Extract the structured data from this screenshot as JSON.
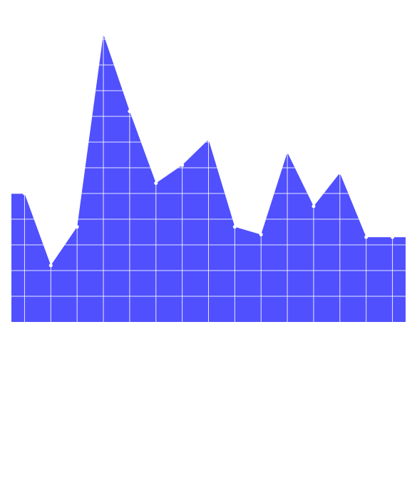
{
  "chart_data": {
    "type": "area",
    "title": "",
    "xlabel": "",
    "ylabel": "",
    "x": [
      0,
      1,
      2,
      3,
      4,
      5,
      6,
      7,
      8,
      9,
      10,
      11,
      12,
      13,
      14
    ],
    "series": [
      {
        "values": [
          50,
          22,
          37,
          112,
          82,
          54,
          61,
          71,
          37,
          34,
          66,
          45,
          58,
          33,
          33
        ]
      }
    ],
    "xlim": [
      -0.5,
      14.5
    ],
    "ylim": [
      0,
      115
    ],
    "grid": true,
    "legend": "none",
    "colors": {
      "fill": "#5050ff",
      "grid": "#ffffff",
      "markers": "#ffffff"
    }
  }
}
